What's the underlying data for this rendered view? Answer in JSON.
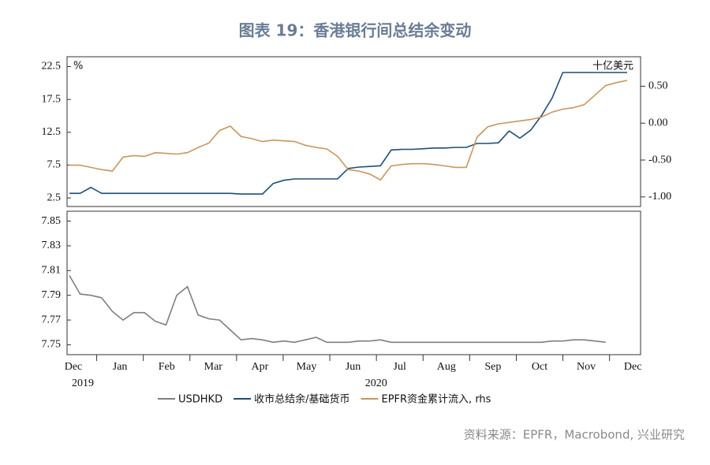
{
  "title": "图表 19：香港银行间总结余变动",
  "source": "资料来源：EPFR，Macrobond, 兴业研究",
  "chart_data": [
    {
      "type": "line",
      "y_unit": "%",
      "y2_unit": "十亿美元",
      "ylim": [
        1.2,
        24
      ],
      "yticks": [
        2.5,
        7.5,
        12.5,
        17.5,
        22.5
      ],
      "y2lim": [
        -1.13,
        0.9
      ],
      "y2ticks": [
        {
          "value": -1,
          "label": "-1.00"
        },
        {
          "value": -0.5,
          "label": "-0.50"
        },
        {
          "value": 0,
          "label": "0.00"
        },
        {
          "value": 0.5,
          "label": "0.50"
        }
      ],
      "series": [
        {
          "name": "收市总结余/基础货币",
          "color": "#1d4e75",
          "values": [
            3.2,
            3.2,
            4.1,
            3.2,
            3.2,
            3.2,
            3.2,
            3.2,
            3.2,
            3.2,
            3.2,
            3.2,
            3.2,
            3.2,
            3.2,
            3.2,
            3.1,
            3.1,
            3.1,
            4.7,
            5.2,
            5.4,
            5.4,
            5.4,
            5.4,
            5.4,
            7.0,
            7.2,
            7.3,
            7.4,
            9.8,
            9.9,
            9.9,
            10.0,
            10.1,
            10.1,
            10.2,
            10.2,
            10.8,
            10.8,
            10.9,
            12.7,
            11.6,
            12.8,
            15.0,
            17.7,
            21.6,
            21.6,
            21.6,
            21.6,
            21.6,
            21.6,
            21.6
          ]
        },
        {
          "name": "EPFR资金累计流入, rhs",
          "color": "#c9965e",
          "axis": "y2",
          "values": [
            -0.57,
            -0.57,
            -0.6,
            -0.63,
            -0.65,
            -0.46,
            -0.44,
            -0.45,
            -0.4,
            -0.41,
            -0.42,
            -0.4,
            -0.33,
            -0.27,
            -0.1,
            -0.04,
            -0.18,
            -0.21,
            -0.25,
            -0.23,
            -0.24,
            -0.25,
            -0.3,
            -0.33,
            -0.35,
            -0.45,
            -0.63,
            -0.65,
            -0.69,
            -0.77,
            -0.58,
            -0.56,
            -0.55,
            -0.55,
            -0.56,
            -0.58,
            -0.6,
            -0.6,
            -0.19,
            -0.05,
            -0.01,
            0.01,
            0.03,
            0.05,
            0.08,
            0.15,
            0.19,
            0.21,
            0.25,
            0.38,
            0.51,
            0.55,
            0.58
          ]
        }
      ]
    },
    {
      "type": "line",
      "ylim": [
        7.742,
        7.858
      ],
      "yticks": [
        7.75,
        7.77,
        7.79,
        7.81,
        7.83,
        7.85
      ],
      "xtick_labels": [
        "Dec",
        "Jan",
        "Feb",
        "Mar",
        "Apr",
        "May",
        "Jun",
        "Jul",
        "Aug",
        "Sep",
        "Oct",
        "Nov",
        "Dec"
      ],
      "xtick_years": [
        "2019",
        null,
        null,
        null,
        null,
        null,
        null,
        "2020",
        null,
        null,
        null,
        null,
        null
      ],
      "series": [
        {
          "name": "USDHKD",
          "color": "#7f7f7f",
          "values": [
            7.806,
            7.791,
            7.79,
            7.788,
            7.777,
            7.77,
            7.776,
            7.776,
            7.769,
            7.766,
            7.79,
            7.797,
            7.774,
            7.771,
            7.77,
            7.762,
            7.754,
            7.755,
            7.754,
            7.752,
            7.753,
            7.752,
            7.754,
            7.756,
            7.752,
            7.752,
            7.752,
            7.753,
            7.753,
            7.754,
            7.752,
            7.752,
            7.752,
            7.752,
            7.752,
            7.752,
            7.752,
            7.752,
            7.752,
            7.752,
            7.752,
            7.752,
            7.752,
            7.752,
            7.752,
            7.753,
            7.753,
            7.754,
            7.754,
            7.753,
            7.752,
            null,
            null
          ]
        }
      ]
    }
  ]
}
